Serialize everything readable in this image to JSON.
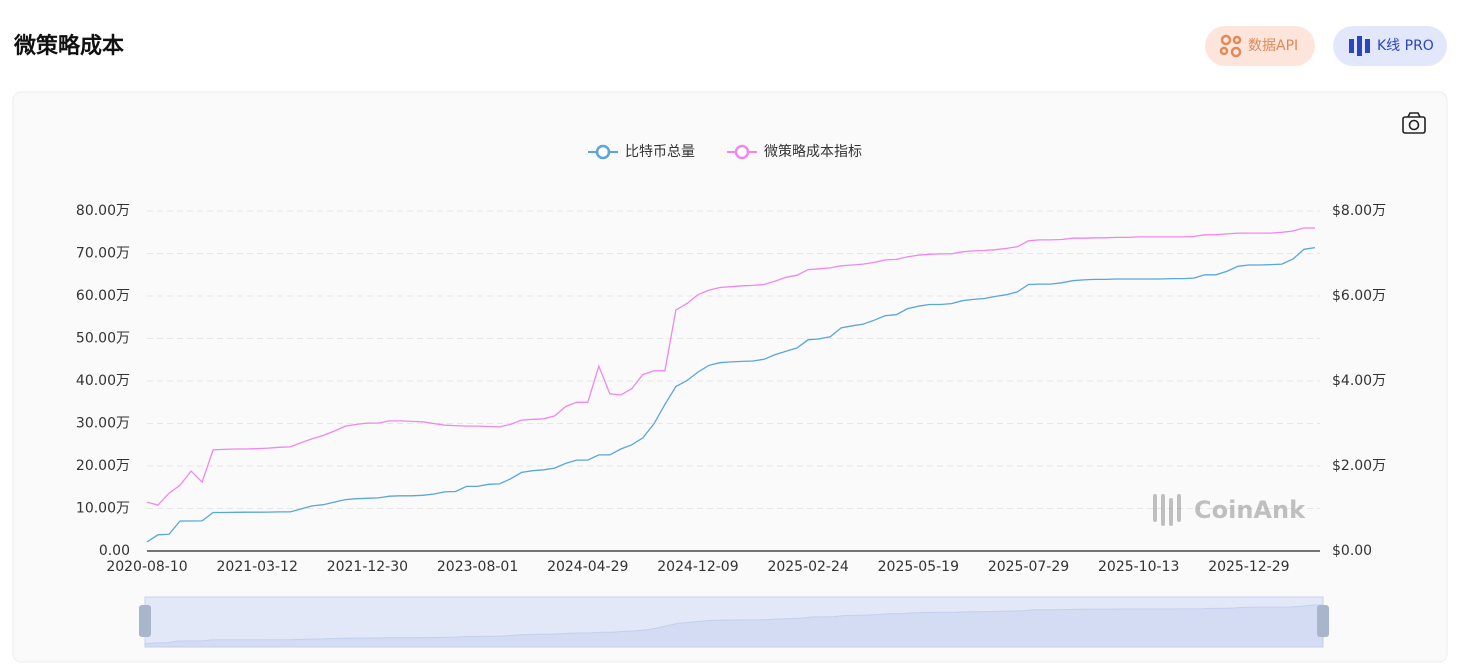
{
  "header": {
    "title": "微策略成本",
    "buttons": [
      "数据API",
      "K线 PRO"
    ]
  },
  "chart_data": {
    "type": "line",
    "legend": "top",
    "grid": true,
    "watermark": "CoinAnk",
    "categories": [
      "2020-08-10",
      null,
      null,
      null,
      null,
      null,
      null,
      null,
      null,
      null,
      "2021-03-12",
      null,
      null,
      null,
      null,
      null,
      null,
      null,
      null,
      null,
      "2021-12-30",
      null,
      null,
      null,
      null,
      null,
      null,
      null,
      null,
      null,
      "2023-08-01",
      null,
      null,
      null,
      null,
      null,
      null,
      null,
      null,
      null,
      "2024-04-29",
      null,
      null,
      null,
      null,
      null,
      null,
      null,
      null,
      null,
      "2024-12-09",
      null,
      null,
      null,
      null,
      null,
      null,
      null,
      null,
      null,
      "2025-02-24",
      null,
      null,
      null,
      null,
      null,
      null,
      null,
      null,
      null,
      "2025-05-19",
      null,
      null,
      null,
      null,
      null,
      null,
      null,
      null,
      null,
      "2025-07-29",
      null,
      null,
      null,
      null,
      null,
      null,
      null,
      null,
      null,
      "2025-10-13",
      null,
      null,
      null,
      null,
      null,
      null,
      null,
      null,
      null,
      "2025-12-29",
      null,
      null,
      null,
      null,
      null,
      null
    ],
    "series": [
      {
        "name": "比特币总量",
        "color": "#5aa5dc",
        "axis": "y",
        "values": [
          21500,
          38200,
          39400,
          70500,
          70500,
          70800,
          90500,
          90500,
          91000,
          91200,
          91400,
          91500,
          92000,
          92000,
          99000,
          106000,
          109000,
          115000,
          121000,
          123000,
          124000,
          125000,
          129000,
          130000,
          130000,
          131000,
          134000,
          139000,
          140000,
          152000,
          152000,
          157000,
          158000,
          170000,
          185000,
          189000,
          191000,
          195000,
          206000,
          214000,
          214000,
          226000,
          226000,
          240000,
          250000,
          266000,
          299000,
          345000,
          387000,
          401000,
          421000,
          437000,
          443000,
          445000,
          446000,
          447000,
          451000,
          462000,
          470000,
          478000,
          497000,
          499000,
          504000,
          525000,
          530000,
          534000,
          543000,
          554000,
          556000,
          570000,
          576000,
          580000,
          580000,
          582000,
          589000,
          592000,
          594000,
          599000,
          603000,
          610000,
          627000,
          628000,
          628000,
          631000,
          636000,
          638000,
          639000,
          639000,
          640000,
          640000,
          640000,
          640000,
          640000,
          641000,
          641000,
          642000,
          650000,
          650000,
          658000,
          670000,
          673000,
          673000,
          674000,
          675000,
          687000,
          710000,
          714000
        ]
      },
      {
        "name": "微策略成本指标",
        "color": "#ee88ee",
        "axis": "y2",
        "values": [
          11500,
          10800,
          13600,
          15500,
          18800,
          16200,
          23800,
          23900,
          24000,
          24000,
          24100,
          24200,
          24400,
          24500,
          25500,
          26400,
          27200,
          28200,
          29400,
          29800,
          30100,
          30100,
          30600,
          30600,
          30500,
          30400,
          30000,
          29600,
          29500,
          29400,
          29400,
          29300,
          29200,
          29800,
          30800,
          31000,
          31100,
          31800,
          34000,
          35000,
          35000,
          43500,
          37000,
          36700,
          38200,
          41500,
          42400,
          42400,
          56700,
          58200,
          60300,
          61400,
          62000,
          62200,
          62400,
          62500,
          62700,
          63500,
          64400,
          64900,
          66200,
          66400,
          66600,
          67100,
          67300,
          67500,
          67900,
          68500,
          68600,
          69200,
          69600,
          69800,
          69900,
          69900,
          70400,
          70600,
          70700,
          70900,
          71200,
          71600,
          73000,
          73200,
          73200,
          73300,
          73600,
          73600,
          73700,
          73700,
          73800,
          73800,
          73900,
          73900,
          73900,
          73900,
          73900,
          74000,
          74400,
          74400,
          74600,
          74800,
          74800,
          74800,
          74800,
          75000,
          75300,
          76000,
          76000
        ]
      }
    ],
    "ylim": [
      0,
      800000
    ],
    "yticks": [
      {
        "value": 0,
        "label": "0.00"
      },
      {
        "value": 100000,
        "label": "10.00万"
      },
      {
        "value": 200000,
        "label": "20.00万"
      },
      {
        "value": 300000,
        "label": "30.00万"
      },
      {
        "value": 400000,
        "label": "40.00万"
      },
      {
        "value": 500000,
        "label": "50.00万"
      },
      {
        "value": 600000,
        "label": "60.00万"
      },
      {
        "value": 700000,
        "label": "70.00万"
      },
      {
        "value": 800000,
        "label": "80.00万"
      }
    ],
    "y2lim": [
      0,
      80000
    ],
    "y2ticks": [
      {
        "value": 0,
        "label": "$0.00"
      },
      {
        "value": 20000,
        "label": "$2.00万"
      },
      {
        "value": 40000,
        "label": "$4.00万"
      },
      {
        "value": 60000,
        "label": "$6.00万"
      },
      {
        "value": 80000,
        "label": "$8.00万"
      }
    ]
  }
}
